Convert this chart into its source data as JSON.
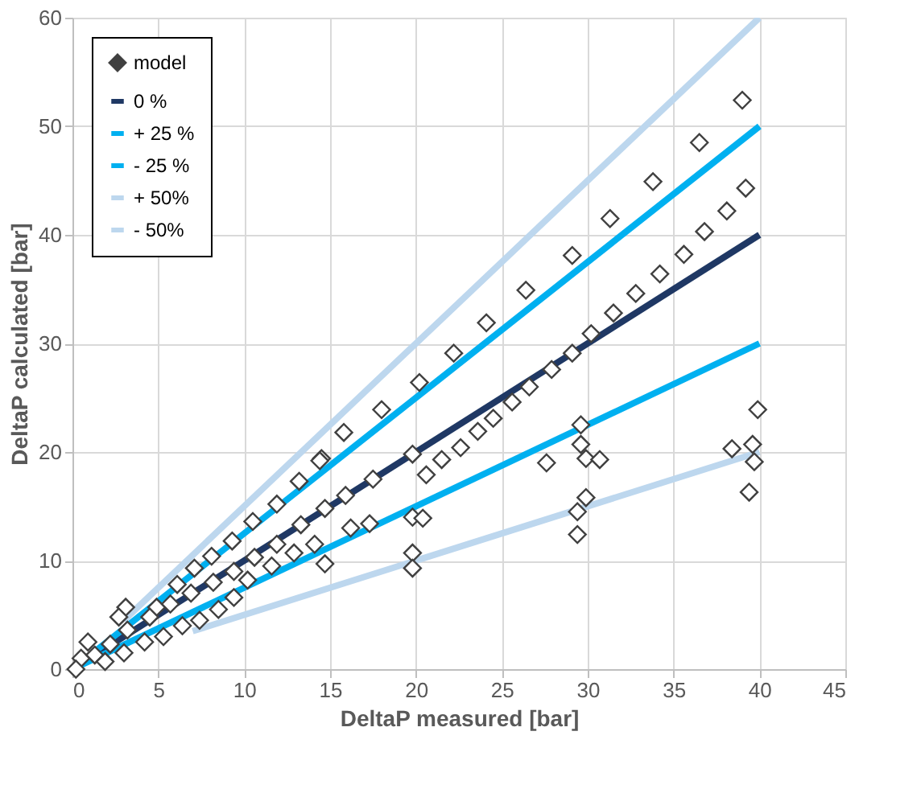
{
  "chart_data": {
    "type": "scatter",
    "xlabel": "DeltaP measured [bar]",
    "ylabel": "DeltaP calculated [bar]",
    "xlim": [
      0,
      45
    ],
    "xticks": [
      0,
      5,
      10,
      15,
      20,
      25,
      30,
      35,
      40,
      45
    ],
    "ylim": [
      0,
      60
    ],
    "yticks": [
      0,
      10,
      20,
      30,
      40,
      50,
      60
    ],
    "grid": true,
    "legend": "top left",
    "series": [
      {
        "name": "model",
        "marker": "diamond",
        "color": "#404040",
        "x": [
          14.5,
          15.8,
          18,
          20.2,
          22.2,
          24.1,
          26.4,
          29.1,
          31.3,
          33.8,
          36.5,
          39,
          39.2,
          38.1,
          36.8,
          35.6,
          34.2,
          32.8,
          31.5,
          30.2,
          29.1,
          27.9,
          26.6,
          25.6,
          24.5,
          23.6,
          22.6,
          21.5,
          19.8,
          27.6,
          29.6,
          29.6,
          29.9,
          30.7,
          29.9,
          29.4,
          29.4,
          39.9,
          39.6,
          38.4,
          39.7,
          39.4,
          19.8,
          19.8,
          19.8,
          20.4,
          20.6,
          14.4,
          13.2,
          11.9,
          10.5,
          9.3,
          8.1,
          7.1,
          6.1,
          4.9,
          3.1,
          2.7,
          0.9,
          0.5,
          0.2,
          17.5,
          15.9,
          14.7,
          13.3,
          11.9,
          10.6,
          9.4,
          8.2,
          6.9,
          5.7,
          4.5,
          3.2,
          2.2,
          1.3,
          17.3,
          16.2,
          14.7,
          14.1,
          12.9,
          11.6,
          10.2,
          9.4,
          8.5,
          7.4,
          6.4,
          5.3,
          4.2,
          3,
          1.9
        ],
        "values": [
          19.4,
          21.8,
          23.9,
          26.4,
          29.1,
          31.9,
          34.9,
          38.1,
          41.5,
          44.9,
          48.5,
          52.4,
          44.3,
          42.2,
          40.3,
          38.2,
          36.4,
          34.6,
          32.8,
          30.9,
          29.1,
          27.6,
          26,
          24.6,
          23.1,
          21.9,
          20.4,
          19.3,
          19.8,
          19,
          22.5,
          20.7,
          19.4,
          19.3,
          15.8,
          14.5,
          12.4,
          23.9,
          20.7,
          20.3,
          19.1,
          16.3,
          10.7,
          9.3,
          14,
          13.9,
          17.9,
          19.2,
          17.3,
          15.2,
          13.6,
          11.8,
          10.4,
          9.3,
          7.8,
          5.7,
          5.7,
          4.8,
          2.5,
          1,
          0,
          17.5,
          16,
          14.8,
          13.3,
          11.5,
          10.3,
          9,
          8,
          7,
          6,
          4.8,
          3.6,
          2.3,
          1.3,
          13.4,
          13,
          9.7,
          11.5,
          10.7,
          9.5,
          8.2,
          6.6,
          5.5,
          4.5,
          4,
          3,
          2.5,
          1.5,
          0.7
        ]
      },
      {
        "name": "0 %",
        "type": "line",
        "color": "#1f3864",
        "x": [
          0,
          40
        ],
        "values": [
          0,
          40
        ]
      },
      {
        "name": "+ 25 %",
        "type": "line",
        "color": "#00b0f0",
        "x": [
          0,
          40
        ],
        "values": [
          0,
          50
        ]
      },
      {
        "name": "- 25 %",
        "type": "line",
        "color": "#00b0f0",
        "x": [
          0,
          40
        ],
        "values": [
          0,
          30
        ]
      },
      {
        "name": "+ 50%",
        "type": "line",
        "color": "#bdd7ee",
        "x": [
          3,
          40
        ],
        "values": [
          4.5,
          60
        ]
      },
      {
        "name": "- 50%",
        "type": "line",
        "color": "#bdd7ee",
        "x": [
          7,
          40
        ],
        "values": [
          3.5,
          20
        ]
      }
    ]
  }
}
